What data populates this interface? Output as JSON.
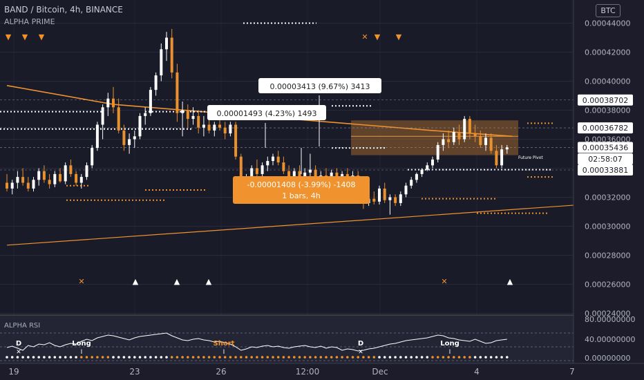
{
  "header": {
    "title": "BAND / Bitcoin, 4h, BINANCE",
    "indicator": "ALPHA PRIME",
    "currency_badge": "BTC",
    "rsi_label": "ALPHA RSI"
  },
  "colors": {
    "background": "#1c1c2a",
    "up_candle": "#ffffff",
    "down_candle": "#e8912e",
    "orange": "#f0922d",
    "grid": "#3a3d4d"
  },
  "chart_data": [
    {
      "type": "candlestick",
      "title": "BAND / Bitcoin, 4h, BINANCE",
      "y_axis_ticks": [
        "0.00044000",
        "0.00042000",
        "0.00040000",
        "0.00038000",
        "0.00036000",
        "0.00034000",
        "0.00032000",
        "0.00030000",
        "0.00028000",
        "0.00026000",
        "0.00024000"
      ],
      "x_axis_ticks": [
        "19",
        "23",
        "26",
        "12:00",
        "Dec",
        "4",
        "7"
      ],
      "ylim": [
        0.000235,
        0.00045
      ],
      "price_labels": [
        {
          "value": 0.00038702,
          "text": "0.00038702"
        },
        {
          "value": 0.00036782,
          "text": "0.00036782"
        },
        {
          "value": 0.00035436,
          "text": "0.00035436"
        },
        {
          "value": 0.00033881,
          "text": "0.00033881"
        }
      ],
      "countdown_label": "02:58:07",
      "measure_labels": [
        {
          "text": "0.00003413 (9.67%) 3413"
        },
        {
          "text": "0.00001493 (4.23%) 1493"
        },
        {
          "text": "-0.00001408 (-3.99%) -1408",
          "text2": "1 bars, 4h"
        }
      ],
      "future_pivot_label": "Future Pivot",
      "signal_markers": [
        {
          "symbol": "▼",
          "color": "#f0922d"
        },
        {
          "symbol": "▼",
          "color": "#f0922d"
        },
        {
          "symbol": "▼",
          "color": "#f0922d"
        },
        {
          "symbol": "✕",
          "color": "#f0922d"
        },
        {
          "symbol": "▼",
          "color": "#f0922d"
        },
        {
          "symbol": "▼",
          "color": "#f0922d"
        },
        {
          "symbol": "✕",
          "color": "#f0922d"
        },
        {
          "symbol": "▲",
          "color": "#ffffff"
        },
        {
          "symbol": "▲",
          "color": "#ffffff"
        },
        {
          "symbol": "▲",
          "color": "#ffffff"
        },
        {
          "symbol": "✕",
          "color": "#f0922d"
        },
        {
          "symbol": "▲",
          "color": "#ffffff"
        }
      ],
      "candles": [
        {
          "o": 0.00033,
          "h": 0.000336,
          "l": 0.000324,
          "c": 0.000326
        },
        {
          "o": 0.000326,
          "h": 0.000332,
          "l": 0.000322,
          "c": 0.00033
        },
        {
          "o": 0.00033,
          "h": 0.000338,
          "l": 0.000326,
          "c": 0.000334
        },
        {
          "o": 0.000334,
          "h": 0.00034,
          "l": 0.000328,
          "c": 0.00033
        },
        {
          "o": 0.00033,
          "h": 0.000334,
          "l": 0.000324,
          "c": 0.000326
        },
        {
          "o": 0.000326,
          "h": 0.000334,
          "l": 0.000324,
          "c": 0.000332
        },
        {
          "o": 0.000332,
          "h": 0.00034,
          "l": 0.000328,
          "c": 0.000338
        },
        {
          "o": 0.000338,
          "h": 0.000342,
          "l": 0.00033,
          "c": 0.000332
        },
        {
          "o": 0.000332,
          "h": 0.000336,
          "l": 0.000326,
          "c": 0.000329
        },
        {
          "o": 0.000329,
          "h": 0.000338,
          "l": 0.000327,
          "c": 0.000336
        },
        {
          "o": 0.000336,
          "h": 0.00034,
          "l": 0.00033,
          "c": 0.000331
        },
        {
          "o": 0.000331,
          "h": 0.000344,
          "l": 0.000329,
          "c": 0.000342
        },
        {
          "o": 0.000342,
          "h": 0.000346,
          "l": 0.000334,
          "c": 0.000336
        },
        {
          "o": 0.000336,
          "h": 0.000338,
          "l": 0.000328,
          "c": 0.00033
        },
        {
          "o": 0.00033,
          "h": 0.000336,
          "l": 0.000326,
          "c": 0.000334
        },
        {
          "o": 0.000334,
          "h": 0.000344,
          "l": 0.000332,
          "c": 0.000342
        },
        {
          "o": 0.000342,
          "h": 0.000356,
          "l": 0.00034,
          "c": 0.000354
        },
        {
          "o": 0.000354,
          "h": 0.000372,
          "l": 0.000352,
          "c": 0.00037
        },
        {
          "o": 0.00037,
          "h": 0.000384,
          "l": 0.00036,
          "c": 0.000382
        },
        {
          "o": 0.000382,
          "h": 0.000392,
          "l": 0.000376,
          "c": 0.000388
        },
        {
          "o": 0.000388,
          "h": 0.000396,
          "l": 0.000378,
          "c": 0.000382
        },
        {
          "o": 0.000382,
          "h": 0.000388,
          "l": 0.000364,
          "c": 0.000366
        },
        {
          "o": 0.000366,
          "h": 0.00037,
          "l": 0.000352,
          "c": 0.000356
        },
        {
          "o": 0.000356,
          "h": 0.000364,
          "l": 0.00035,
          "c": 0.00036
        },
        {
          "o": 0.00036,
          "h": 0.000366,
          "l": 0.000354,
          "c": 0.000362
        },
        {
          "o": 0.000362,
          "h": 0.000378,
          "l": 0.00036,
          "c": 0.000376
        },
        {
          "o": 0.000376,
          "h": 0.000382,
          "l": 0.00037,
          "c": 0.000378
        },
        {
          "o": 0.000378,
          "h": 0.000396,
          "l": 0.000376,
          "c": 0.000394
        },
        {
          "o": 0.000394,
          "h": 0.000406,
          "l": 0.00039,
          "c": 0.000404
        },
        {
          "o": 0.000404,
          "h": 0.000426,
          "l": 0.0004,
          "c": 0.000422
        },
        {
          "o": 0.000422,
          "h": 0.000434,
          "l": 0.000414,
          "c": 0.00043
        },
        {
          "o": 0.00043,
          "h": 0.000436,
          "l": 0.000402,
          "c": 0.000406
        },
        {
          "o": 0.000406,
          "h": 0.000412,
          "l": 0.000372,
          "c": 0.000378
        },
        {
          "o": 0.000378,
          "h": 0.000386,
          "l": 0.000362,
          "c": 0.00038
        },
        {
          "o": 0.00038,
          "h": 0.000384,
          "l": 0.000368,
          "c": 0.000374
        },
        {
          "o": 0.000374,
          "h": 0.000382,
          "l": 0.00037,
          "c": 0.000376
        },
        {
          "o": 0.000376,
          "h": 0.00038,
          "l": 0.000364,
          "c": 0.000368
        },
        {
          "o": 0.000368,
          "h": 0.000376,
          "l": 0.000362,
          "c": 0.00037
        },
        {
          "o": 0.00037,
          "h": 0.000376,
          "l": 0.000364,
          "c": 0.000366
        },
        {
          "o": 0.000366,
          "h": 0.000372,
          "l": 0.000362,
          "c": 0.00037
        },
        {
          "o": 0.00037,
          "h": 0.000378,
          "l": 0.000366,
          "c": 0.000368
        },
        {
          "o": 0.000368,
          "h": 0.000372,
          "l": 0.00036,
          "c": 0.000364
        },
        {
          "o": 0.000364,
          "h": 0.000372,
          "l": 0.000362,
          "c": 0.00037
        },
        {
          "o": 0.00037,
          "h": 0.000372,
          "l": 0.000346,
          "c": 0.000348
        },
        {
          "o": 0.000348,
          "h": 0.00035,
          "l": 0.000322,
          "c": 0.000326
        },
        {
          "o": 0.000326,
          "h": 0.000336,
          "l": 0.00032,
          "c": 0.000332
        },
        {
          "o": 0.000332,
          "h": 0.000342,
          "l": 0.00033,
          "c": 0.00034
        },
        {
          "o": 0.00034,
          "h": 0.000346,
          "l": 0.000334,
          "c": 0.000336
        },
        {
          "o": 0.000336,
          "h": 0.000344,
          "l": 0.000332,
          "c": 0.000342
        },
        {
          "o": 0.000342,
          "h": 0.000348,
          "l": 0.000338,
          "c": 0.000345
        },
        {
          "o": 0.000345,
          "h": 0.00035,
          "l": 0.000342,
          "c": 0.000348
        },
        {
          "o": 0.000348,
          "h": 0.000352,
          "l": 0.000342,
          "c": 0.000344
        },
        {
          "o": 0.000344,
          "h": 0.000348,
          "l": 0.000336,
          "c": 0.000338
        },
        {
          "o": 0.000338,
          "h": 0.000342,
          "l": 0.000332,
          "c": 0.000334
        },
        {
          "o": 0.000334,
          "h": 0.00034,
          "l": 0.00033,
          "c": 0.000338
        },
        {
          "o": 0.000338,
          "h": 0.000342,
          "l": 0.000332,
          "c": 0.000334
        },
        {
          "o": 0.000334,
          "h": 0.00034,
          "l": 0.000332,
          "c": 0.000337
        },
        {
          "o": 0.000337,
          "h": 0.00035,
          "l": 0.000333,
          "c": 0.000339
        },
        {
          "o": 0.000339,
          "h": 0.000342,
          "l": 0.00033,
          "c": 0.000332
        },
        {
          "o": 0.000332,
          "h": 0.000338,
          "l": 0.000329,
          "c": 0.000335
        },
        {
          "o": 0.000335,
          "h": 0.00034,
          "l": 0.000331,
          "c": 0.000333
        },
        {
          "o": 0.000333,
          "h": 0.000339,
          "l": 0.00033,
          "c": 0.000337
        },
        {
          "o": 0.000337,
          "h": 0.00034,
          "l": 0.000332,
          "c": 0.000334
        },
        {
          "o": 0.000334,
          "h": 0.000338,
          "l": 0.00033,
          "c": 0.000336
        },
        {
          "o": 0.000336,
          "h": 0.00034,
          "l": 0.000332,
          "c": 0.000333
        },
        {
          "o": 0.000333,
          "h": 0.000338,
          "l": 0.00033,
          "c": 0.000335
        },
        {
          "o": 0.000335,
          "h": 0.000338,
          "l": 0.000328,
          "c": 0.00033
        },
        {
          "o": 0.00033,
          "h": 0.000334,
          "l": 0.000312,
          "c": 0.000316
        },
        {
          "o": 0.000316,
          "h": 0.000322,
          "l": 0.000314,
          "c": 0.000319
        },
        {
          "o": 0.000319,
          "h": 0.000324,
          "l": 0.000315,
          "c": 0.000317
        },
        {
          "o": 0.000317,
          "h": 0.000328,
          "l": 0.000315,
          "c": 0.000326
        },
        {
          "o": 0.000326,
          "h": 0.00033,
          "l": 0.000316,
          "c": 0.000318
        },
        {
          "o": 0.000318,
          "h": 0.000322,
          "l": 0.000308,
          "c": 0.00032
        },
        {
          "o": 0.00032,
          "h": 0.000322,
          "l": 0.000314,
          "c": 0.000316
        },
        {
          "o": 0.000316,
          "h": 0.000324,
          "l": 0.000314,
          "c": 0.000322
        },
        {
          "o": 0.000322,
          "h": 0.00033,
          "l": 0.00032,
          "c": 0.000328
        },
        {
          "o": 0.000328,
          "h": 0.000334,
          "l": 0.000326,
          "c": 0.000332
        },
        {
          "o": 0.000332,
          "h": 0.000337,
          "l": 0.00033,
          "c": 0.000336
        },
        {
          "o": 0.000336,
          "h": 0.00034,
          "l": 0.000334,
          "c": 0.000339
        },
        {
          "o": 0.000339,
          "h": 0.000344,
          "l": 0.000338,
          "c": 0.000342
        },
        {
          "o": 0.000342,
          "h": 0.000348,
          "l": 0.00034,
          "c": 0.000346
        },
        {
          "o": 0.000346,
          "h": 0.000358,
          "l": 0.000344,
          "c": 0.000356
        },
        {
          "o": 0.000356,
          "h": 0.000364,
          "l": 0.000352,
          "c": 0.00036
        },
        {
          "o": 0.00036,
          "h": 0.000366,
          "l": 0.000354,
          "c": 0.000358
        },
        {
          "o": 0.000358,
          "h": 0.000368,
          "l": 0.000356,
          "c": 0.000365
        },
        {
          "o": 0.000365,
          "h": 0.00037,
          "l": 0.000356,
          "c": 0.00036
        },
        {
          "o": 0.00036,
          "h": 0.000376,
          "l": 0.000358,
          "c": 0.000374
        },
        {
          "o": 0.000374,
          "h": 0.000376,
          "l": 0.00036,
          "c": 0.000364
        },
        {
          "o": 0.000364,
          "h": 0.00037,
          "l": 0.000358,
          "c": 0.000362
        },
        {
          "o": 0.000362,
          "h": 0.000366,
          "l": 0.000354,
          "c": 0.000356
        },
        {
          "o": 0.000356,
          "h": 0.000364,
          "l": 0.000352,
          "c": 0.000361
        },
        {
          "o": 0.000361,
          "h": 0.000364,
          "l": 0.00035,
          "c": 0.000352
        },
        {
          "o": 0.000352,
          "h": 0.000356,
          "l": 0.00034,
          "c": 0.000342
        },
        {
          "o": 0.000342,
          "h": 0.000356,
          "l": 0.00034,
          "c": 0.000353
        },
        {
          "o": 0.000353,
          "h": 0.000356,
          "l": 0.00035,
          "c": 0.0003544
        }
      ],
      "lines": [
        {
          "name": "moving-average",
          "points": [
            [
              0,
              0.000397
            ],
            [
              20,
              0.000384
            ],
            [
              40,
              0.000378
            ],
            [
              60,
              0.000372
            ],
            [
              80,
              0.000366
            ],
            [
              95,
              0.000362
            ]
          ]
        },
        {
          "name": "trend-line",
          "points": [
            [
              0,
              0.000287
            ],
            [
              120,
              0.000318
            ]
          ]
        }
      ]
    },
    {
      "type": "line",
      "title": "ALPHA RSI",
      "y_axis_ticks": [
        "80.00000000",
        "40.00000000",
        "0.00000000"
      ],
      "ylim": [
        0,
        90
      ],
      "values": [
        38,
        42,
        36,
        30,
        44,
        40,
        48,
        46,
        52,
        44,
        40,
        46,
        50,
        48,
        56,
        62,
        58,
        66,
        70,
        74,
        72,
        68,
        64,
        60,
        66,
        70,
        72,
        74,
        76,
        78,
        80,
        72,
        66,
        60,
        58,
        62,
        64,
        60,
        58,
        54,
        56,
        52,
        48,
        40,
        30,
        34,
        40,
        38,
        42,
        44,
        40,
        42,
        38,
        36,
        40,
        42,
        44,
        40,
        38,
        42,
        36,
        40,
        38,
        30,
        34,
        32,
        28,
        30,
        34,
        36,
        40,
        44,
        48,
        50,
        54,
        58,
        60,
        62,
        64,
        66,
        70,
        74,
        72,
        66,
        64,
        60,
        58,
        56,
        62,
        56,
        50,
        52,
        58,
        60,
        62
      ],
      "signal_labels": [
        "D",
        "Long",
        "Short",
        "D",
        "Long"
      ]
    }
  ]
}
